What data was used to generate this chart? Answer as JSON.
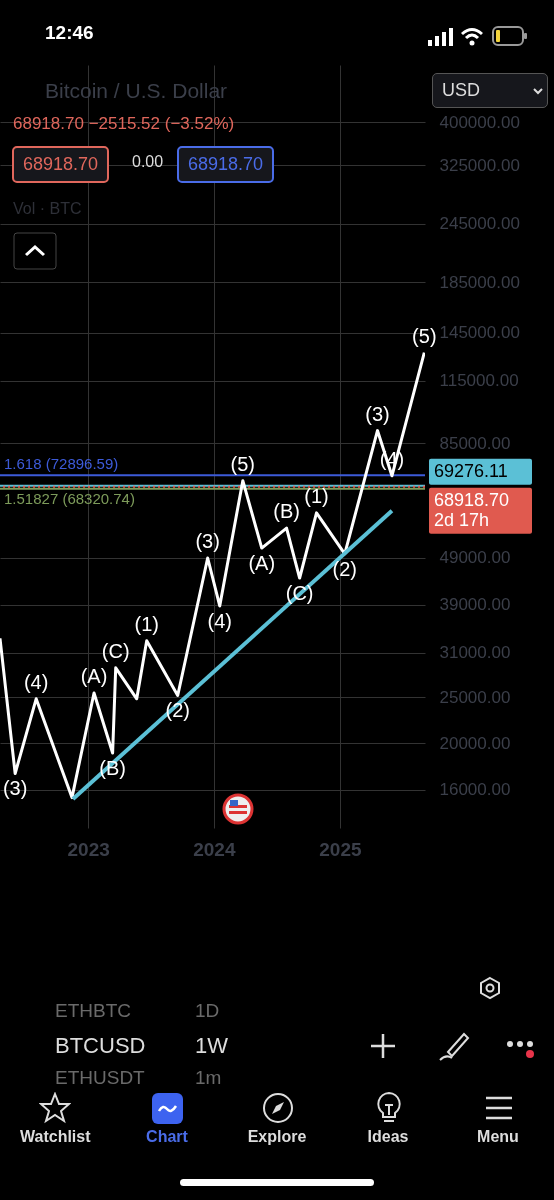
{
  "chart_data": {
    "type": "line",
    "title": "Bitcoin / U.S. Dollar",
    "subtitle": "68918.70 −2515.52 (−3.52%)",
    "xlim": [
      "2022-04-20",
      "2025-09-05"
    ],
    "xticks": [
      "2023",
      "2024",
      "2025"
    ],
    "ylim": [
      13300,
      527000
    ],
    "log": "y",
    "grid": true,
    "yticks": [
      {
        "value": 16000,
        "label": "16000.00"
      },
      {
        "value": 20000,
        "label": "20000.00"
      },
      {
        "value": 25000,
        "label": "25000.00"
      },
      {
        "value": 31000,
        "label": "31000.00"
      },
      {
        "value": 39000,
        "label": "39000.00"
      },
      {
        "value": 49000,
        "label": "49000.00"
      },
      {
        "value": 85000,
        "label": "85000.00"
      },
      {
        "value": 115000,
        "label": "115000.00"
      },
      {
        "value": 145000,
        "label": "145000.00"
      },
      {
        "value": 185000,
        "label": "185000.00"
      },
      {
        "value": 245000,
        "label": "245000.00"
      },
      {
        "value": 325000,
        "label": "325000.00"
      },
      {
        "value": 400000,
        "label": "400000.00"
      }
    ],
    "series": [
      {
        "color": "#ffffff",
        "x": [
          "2022-04-20",
          "2022-06-03",
          "2022-08-03",
          "2022-11-15",
          "2023-01-18",
          "2023-03-13",
          "2023-03-22",
          "2023-05-22",
          "2023-06-20",
          "2023-09-18",
          "2023-12-14",
          "2024-01-18",
          "2024-03-25",
          "2024-05-19",
          "2024-07-30",
          "2024-09-06",
          "2024-10-25",
          "2025-01-15",
          "2025-04-20",
          "2025-06-01",
          "2025-09-03"
        ],
        "values": [
          33200,
          17300,
          24800,
          15400,
          25500,
          19100,
          28800,
          24800,
          32800,
          25200,
          48900,
          38800,
          71000,
          51300,
          56500,
          44400,
          60800,
          49900,
          90400,
          72700,
          131700
        ]
      },
      {
        "color": "#5bc0d6",
        "x": [
          "2022-11-18",
          "2025-06-01"
        ],
        "values": [
          15300,
          61400
        ]
      }
    ],
    "ref_lines": [
      {
        "axis": "y",
        "value": 72896.59,
        "label": "1.618 (72896.59)",
        "color": "#3d5bd9"
      },
      {
        "axis": "y",
        "value": 68320.74,
        "label": "1.51827 (68320.74)",
        "color": "#7d9b5a"
      },
      {
        "axis": "y",
        "value": 69276.11,
        "label": "69276.11",
        "color": "#5bc0d6"
      },
      {
        "axis": "y",
        "value": 68918.7,
        "label": "68918.70\n2d 17h",
        "color": "#e05a4f",
        "line_style": "dotted"
      }
    ],
    "annotations": [
      "12:46",
      "68918.70",
      "0.00",
      "68918.70",
      "Vol · BTC",
      "USD",
      "ETHBTC",
      "1D",
      "BTCUSD",
      "1W",
      "ETHUSDT",
      "1m",
      "Watchlist",
      "Chart",
      "Explore",
      "Ideas",
      "Menu",
      {
        "text": "(3)",
        "x": "2022-06-03",
        "y": 17300
      },
      {
        "text": "(4)",
        "x": "2022-08-03",
        "y": 24800
      },
      {
        "text": "(A)",
        "x": "2023-01-18",
        "y": 25500
      },
      {
        "text": "(B)",
        "x": "2023-03-13",
        "y": 19100
      },
      {
        "text": "(C)",
        "x": "2023-03-22",
        "y": 28800
      },
      {
        "text": "(1)",
        "x": "2023-06-20",
        "y": 32800
      },
      {
        "text": "(2)",
        "x": "2023-09-18",
        "y": 25200
      },
      {
        "text": "(3)",
        "x": "2023-12-14",
        "y": 48900
      },
      {
        "text": "(4)",
        "x": "2024-01-18",
        "y": 38800
      },
      {
        "text": "(5)",
        "x": "2024-03-25",
        "y": 71000
      },
      {
        "text": "(A)",
        "x": "2024-05-19",
        "y": 51300
      },
      {
        "text": "(B)",
        "x": "2024-07-30",
        "y": 56500
      },
      {
        "text": "(C)",
        "x": "2024-09-06",
        "y": 44400
      },
      {
        "text": "(1)",
        "x": "2024-10-25",
        "y": 60800
      },
      {
        "text": "(2)",
        "x": "2025-01-15",
        "y": 49900
      },
      {
        "text": "(3)",
        "x": "2025-04-20",
        "y": 90400
      },
      {
        "text": "(4)",
        "x": "2025-06-01",
        "y": 72700
      },
      {
        "text": "(5)",
        "x": "2025-09-03",
        "y": 131700
      }
    ]
  }
}
